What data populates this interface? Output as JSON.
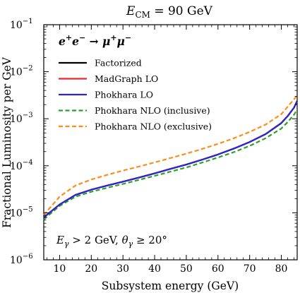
{
  "chart_data": {
    "type": "line",
    "title_prefix": "E",
    "title_sub": "CM",
    "title_rest": " = 90 GeV",
    "xlabel": "Subsystem energy (GeV)",
    "ylabel": "Fractional Luminosity per GeV",
    "xlim": [
      5,
      85
    ],
    "ylim": [
      1e-06,
      0.1
    ],
    "yscale": "log",
    "grid": false,
    "legend_placement": "upper-left",
    "x_ticks": [
      10,
      20,
      30,
      40,
      50,
      60,
      70,
      80
    ],
    "x_tick_labels": [
      "10",
      "20",
      "30",
      "40",
      "50",
      "60",
      "70",
      "80"
    ],
    "y_ticks": [
      1e-06,
      1e-05,
      0.0001,
      0.001,
      0.01,
      0.1
    ],
    "y_tick_bases": [
      "10",
      "10",
      "10",
      "10",
      "10",
      "10"
    ],
    "y_tick_exps": [
      "−6",
      "−5",
      "−4",
      "−3",
      "−2",
      "−1"
    ],
    "process": {
      "a": "e",
      "a_sup": "+",
      "b": "e",
      "b_sup": "−",
      "arrow": " → ",
      "c": "μ",
      "c_sup": "+",
      "d": "μ",
      "d_sup": "−"
    },
    "annotation": {
      "e": "E",
      "e_sub": "γ",
      "e_rest": " > 2 GeV, ",
      "theta": "θ",
      "theta_sub": "γ",
      "theta_rest": " ≥ 20°"
    },
    "x": [
      5,
      10,
      15,
      20,
      25,
      30,
      35,
      40,
      45,
      50,
      55,
      60,
      65,
      70,
      75,
      80,
      82,
      84,
      85
    ],
    "series": [
      {
        "name": "Factorized",
        "color": "#000000",
        "dash": "solid",
        "values": [
          8e-06,
          1.5e-05,
          2.4e-05,
          3.1e-05,
          3.8e-05,
          4.6e-05,
          5.6e-05,
          6.9e-05,
          8.6e-05,
          0.000106,
          0.000135,
          0.000174,
          0.000232,
          0.00032,
          0.00047,
          0.00081,
          0.00114,
          0.00172,
          0.0024
        ]
      },
      {
        "name": "MadGraph LO",
        "color": "#e8262d",
        "dash": "solid",
        "values": [
          8e-06,
          1.5e-05,
          2.4e-05,
          3.1e-05,
          3.8e-05,
          4.6e-05,
          5.6e-05,
          6.9e-05,
          8.6e-05,
          0.000106,
          0.000135,
          0.000174,
          0.000232,
          0.00032,
          0.00047,
          0.00081,
          0.00114,
          0.00172,
          0.0024
        ]
      },
      {
        "name": "Phokhara LO",
        "color": "#2a25d4",
        "dash": "solid",
        "values": [
          8e-06,
          1.5e-05,
          2.4e-05,
          3.1e-05,
          3.8e-05,
          4.6e-05,
          5.6e-05,
          6.9e-05,
          8.6e-05,
          0.000106,
          0.000135,
          0.000174,
          0.000232,
          0.00032,
          0.00047,
          0.00081,
          0.00114,
          0.00172,
          0.0024
        ]
      },
      {
        "name": "Phokhara NLO (inclusive)",
        "color": "#2ca02c",
        "dash": "dashed",
        "values": [
          7.2e-06,
          1.4e-05,
          2.2e-05,
          2.8e-05,
          3.4e-05,
          4.1e-05,
          5e-05,
          6.1e-05,
          7.5e-05,
          9.2e-05,
          0.000117,
          0.00015,
          0.000195,
          0.000265,
          0.000385,
          0.00062,
          0.00085,
          0.00122,
          0.00157
        ]
      },
      {
        "name": "Phokhara NLO (exclusive)",
        "color": "#ff8c1a",
        "dash": "dashed",
        "values": [
          9e-06,
          2.2e-05,
          3.8e-05,
          5.1e-05,
          6.4e-05,
          7.9e-05,
          9.6e-05,
          0.000118,
          0.000146,
          0.000181,
          0.000228,
          0.000292,
          0.000385,
          0.000525,
          0.00075,
          0.00125,
          0.0018,
          0.0026,
          0.0031
        ]
      }
    ]
  }
}
